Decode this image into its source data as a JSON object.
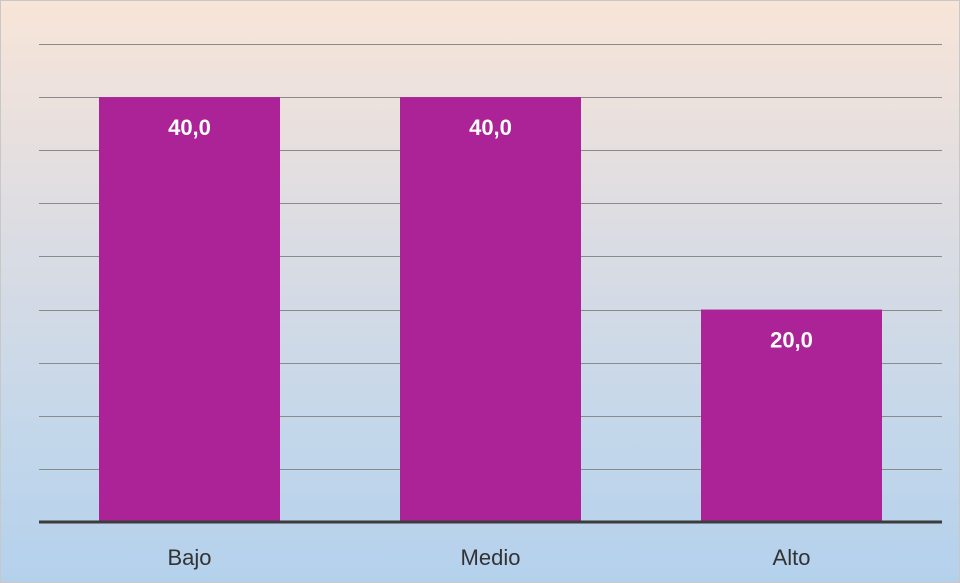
{
  "chart_data": {
    "type": "bar",
    "categories": [
      "Bajo",
      "Medio",
      "Alto"
    ],
    "values": [
      40.0,
      40.0,
      20.0
    ],
    "data_labels": [
      "40,0",
      "40,0",
      "20,0"
    ],
    "ylim": [
      0,
      45
    ],
    "y_step": 5,
    "grid": true,
    "legend": "none",
    "bar_color": "#ab2396"
  }
}
